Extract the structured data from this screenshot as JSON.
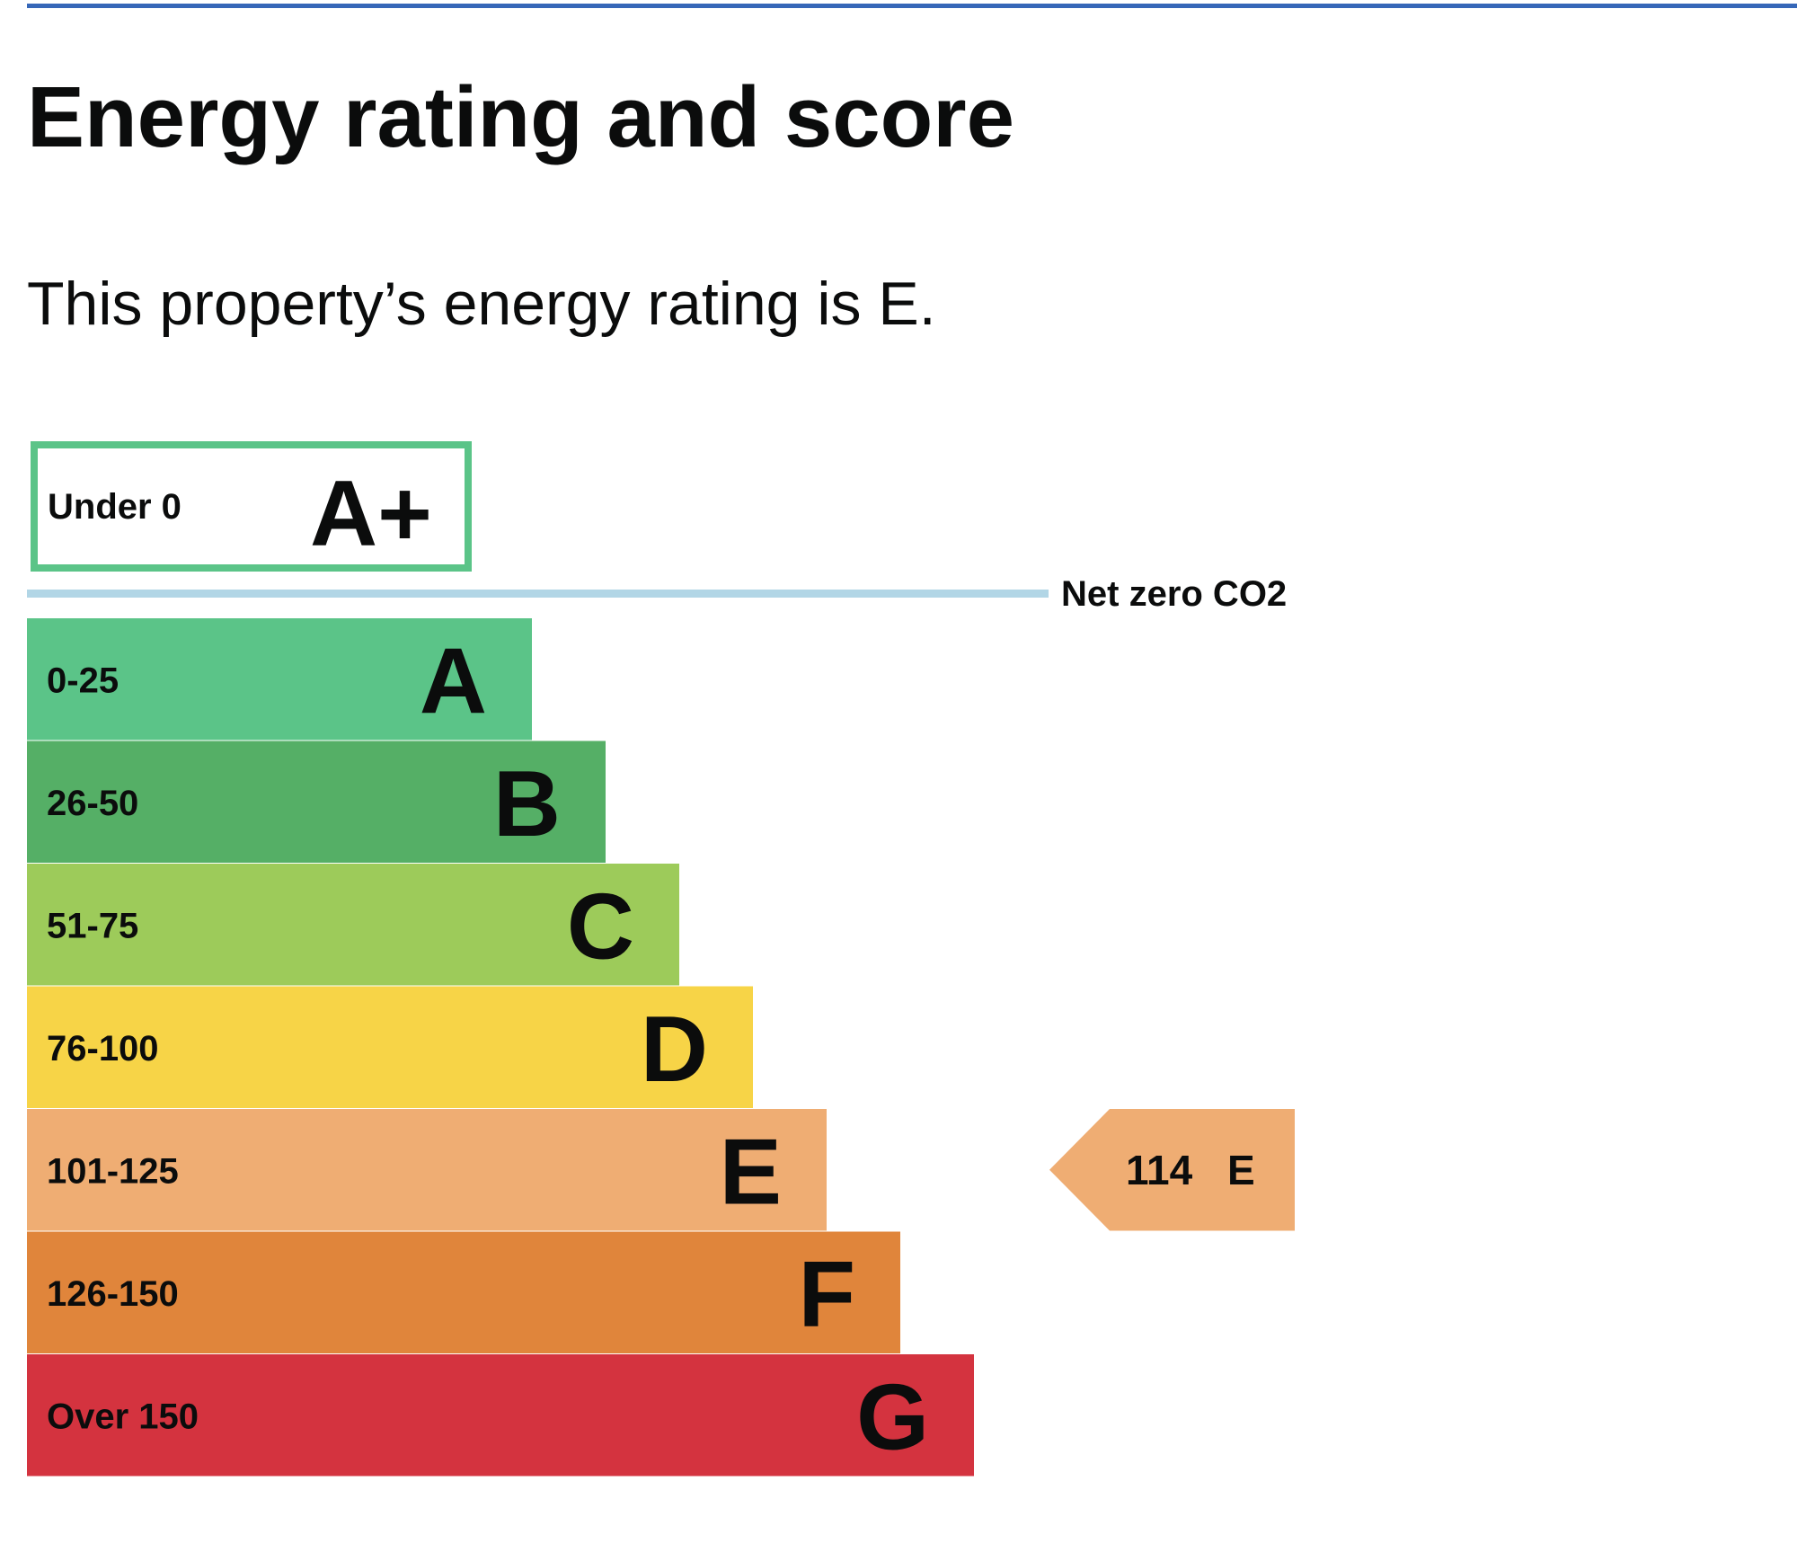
{
  "header": {
    "title": "Energy rating and score",
    "summary": "This property’s energy rating is E."
  },
  "chart_data": {
    "type": "bar",
    "orientation": "horizontal",
    "bands": [
      {
        "range": "Under 0",
        "letter": "A+",
        "color": "#5bc488",
        "style": "outline"
      },
      {
        "range": "0-25",
        "letter": "A",
        "color": "#5bc488"
      },
      {
        "range": "26-50",
        "letter": "B",
        "color": "#55af66"
      },
      {
        "range": "51-75",
        "letter": "C",
        "color": "#9dcb5a"
      },
      {
        "range": "76-100",
        "letter": "D",
        "color": "#f7d447"
      },
      {
        "range": "101-125",
        "letter": "E",
        "color": "#efad73"
      },
      {
        "range": "126-150",
        "letter": "F",
        "color": "#e0853b"
      },
      {
        "range": "Over 150",
        "letter": "G",
        "color": "#d4333f"
      }
    ],
    "net_zero_label": "Net zero CO2",
    "net_zero_line_color": "#b2d6e6",
    "current": {
      "score": "114",
      "letter": "E",
      "color": "#efad73"
    }
  }
}
